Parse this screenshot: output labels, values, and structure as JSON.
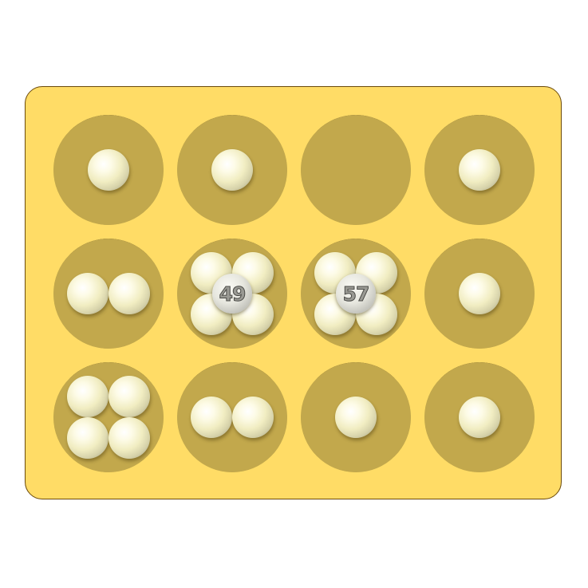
{
  "board": {
    "colors": {
      "board": "#ffdc66",
      "board_border": "#6b4a0a",
      "pit": "#c2a84c",
      "pit_shadow": "#7e6a2a",
      "stone": "#f4f1cf"
    },
    "pits": [
      {
        "row": 0,
        "col": 0,
        "stones": 1
      },
      {
        "row": 0,
        "col": 1,
        "stones": 1
      },
      {
        "row": 0,
        "col": 2,
        "stones": 0
      },
      {
        "row": 0,
        "col": 3,
        "stones": 1
      },
      {
        "row": 1,
        "col": 0,
        "stones": 2
      },
      {
        "row": 1,
        "col": 1,
        "stones": 49,
        "count_label": "49"
      },
      {
        "row": 1,
        "col": 2,
        "stones": 57,
        "count_label": "57"
      },
      {
        "row": 1,
        "col": 3,
        "stones": 1
      },
      {
        "row": 2,
        "col": 0,
        "stones": 4
      },
      {
        "row": 2,
        "col": 1,
        "stones": 2
      },
      {
        "row": 2,
        "col": 2,
        "stones": 1
      },
      {
        "row": 2,
        "col": 3,
        "stones": 1
      }
    ]
  }
}
